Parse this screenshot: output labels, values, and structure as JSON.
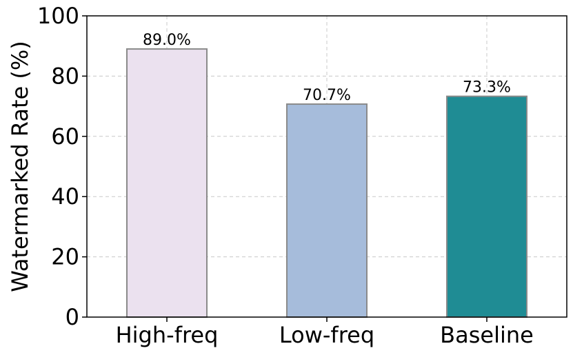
{
  "chart_data": {
    "type": "bar",
    "title": "",
    "xlabel": "",
    "ylabel": "Watermarked Rate (%)",
    "categories": [
      "High-freq",
      "Low-freq",
      "Baseline"
    ],
    "values": [
      89.0,
      70.7,
      73.3
    ],
    "value_labels": [
      "89.0%",
      "70.7%",
      "73.3%"
    ],
    "bar_colors": [
      "#ebe1ef",
      "#a6bcdb",
      "#1f8c94"
    ],
    "bar_edge_color": "#8a8a8a",
    "ylim": [
      0,
      100
    ],
    "yticks": [
      0,
      20,
      40,
      60,
      80,
      100
    ],
    "grid": true,
    "legend": "none"
  }
}
